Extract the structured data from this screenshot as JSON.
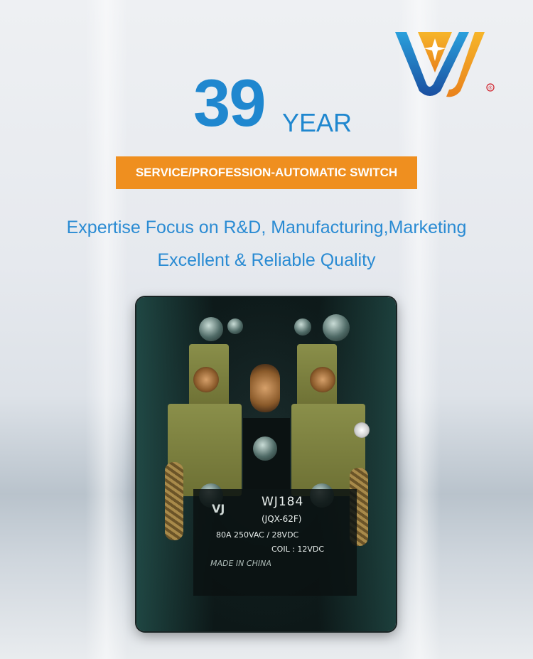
{
  "brand": {
    "logo_name": "WJ",
    "registered_mark": "®",
    "colors": {
      "blue": "#1f87cf",
      "orange": "#ef8f1f"
    }
  },
  "headline": {
    "number": "39",
    "unit": "YEAR"
  },
  "banner": {
    "text": "SERVICE/PROFESSION-AUTOMATIC SWITCH"
  },
  "taglines": [
    "Expertise Focus on R&D, Manufacturing,Marketing",
    "Excellent & Reliable Quality"
  ],
  "product_label": {
    "model": "WJ184",
    "type": "(JQX-62F)",
    "rating": "80A  250VAC / 28VDC",
    "coil": "COIL : 12VDC",
    "origin": "MADE   IN   CHINA"
  }
}
